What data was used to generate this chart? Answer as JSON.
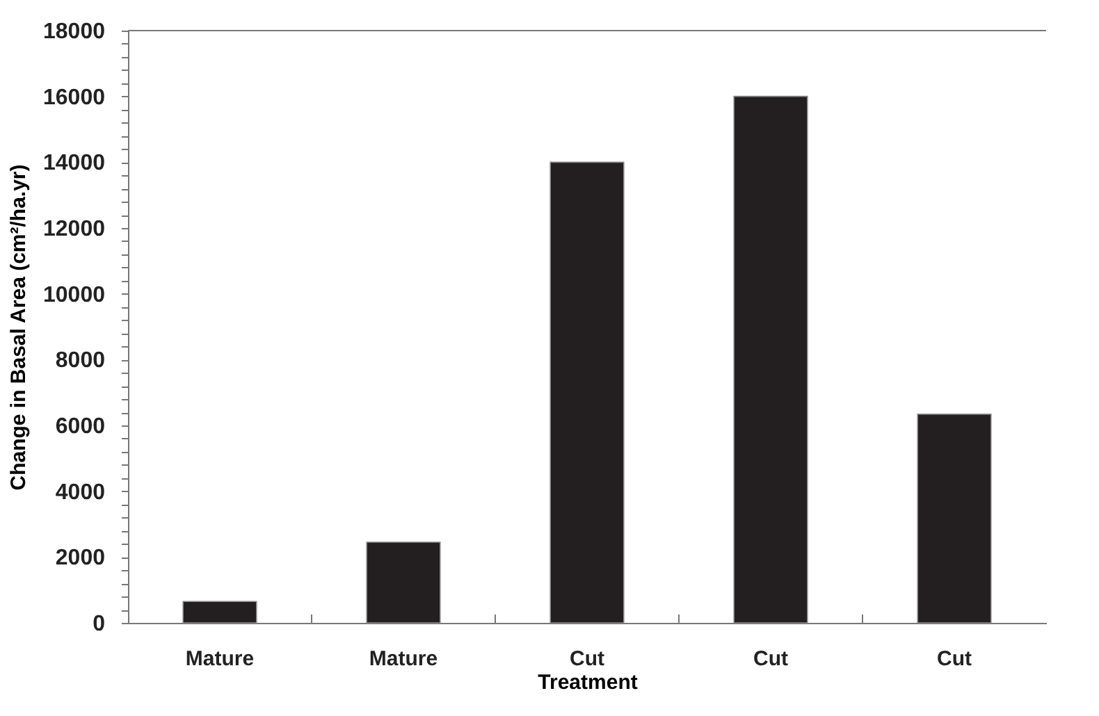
{
  "chart_data": {
    "type": "bar",
    "xlabel": "Treatment",
    "ylabel": "Change in Basal Area (cm²/ha.yr)",
    "categories": [
      "Mature",
      "Mature",
      "Cut",
      "Cut",
      "Cut"
    ],
    "values": [
      650,
      2450,
      14000,
      16000,
      6340
    ],
    "color": "#231f20",
    "ylim": [
      0,
      18000
    ],
    "yticks": [
      0,
      {
        "value": 400,
        "label": null
      },
      {
        "value": 800,
        "label": null
      },
      {
        "value": 1200,
        "label": null
      },
      {
        "value": 1600,
        "label": null
      },
      2000,
      {
        "value": 2400,
        "label": null
      },
      {
        "value": 2800,
        "label": null
      },
      {
        "value": 3200,
        "label": null
      },
      {
        "value": 3600,
        "label": null
      },
      4000,
      {
        "value": 4400,
        "label": null
      },
      {
        "value": 4800,
        "label": null
      },
      {
        "value": 5200,
        "label": null
      },
      {
        "value": 5600,
        "label": null
      },
      6000,
      {
        "value": 6400,
        "label": null
      },
      {
        "value": 6800,
        "label": null
      },
      {
        "value": 7200,
        "label": null
      },
      {
        "value": 7600,
        "label": null
      },
      8000,
      {
        "value": 8400,
        "label": null
      },
      {
        "value": 8800,
        "label": null
      },
      {
        "value": 9200,
        "label": null
      },
      {
        "value": 9600,
        "label": null
      },
      10000,
      {
        "value": 10400,
        "label": null
      },
      {
        "value": 10800,
        "label": null
      },
      {
        "value": 11200,
        "label": null
      },
      {
        "value": 11600,
        "label": null
      },
      12000,
      {
        "value": 12400,
        "label": null
      },
      {
        "value": 12800,
        "label": null
      },
      {
        "value": 13200,
        "label": null
      },
      {
        "value": 13600,
        "label": null
      },
      14000,
      {
        "value": 14400,
        "label": null
      },
      {
        "value": 14800,
        "label": null
      },
      {
        "value": 15200,
        "label": null
      },
      {
        "value": 15600,
        "label": null
      },
      16000,
      {
        "value": 16400,
        "label": null
      },
      {
        "value": 16800,
        "label": null
      },
      {
        "value": 17200,
        "label": null
      },
      {
        "value": 17600,
        "label": null
      },
      18000
    ],
    "grid": false
  }
}
